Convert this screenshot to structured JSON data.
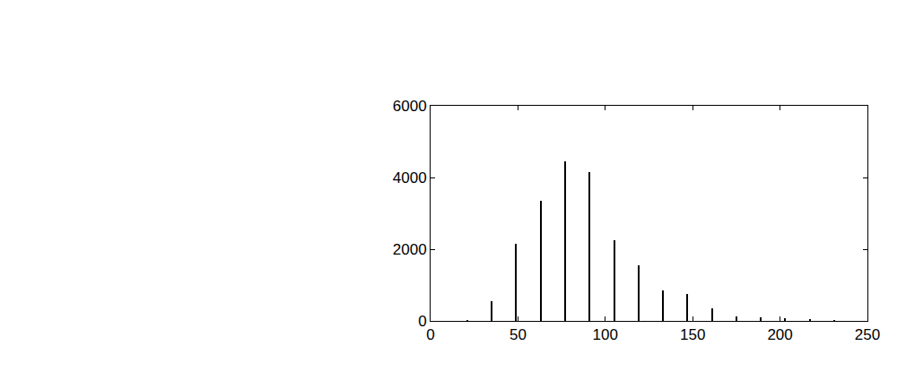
{
  "chart_data": {
    "type": "bar",
    "x": [
      21,
      35,
      49,
      63,
      77,
      91,
      105,
      119,
      133,
      147,
      161,
      175,
      189,
      203,
      217,
      231
    ],
    "values": [
      30,
      550,
      2150,
      3350,
      4450,
      4150,
      2250,
      1550,
      850,
      750,
      350,
      120,
      100,
      80,
      50,
      30
    ],
    "color": "#000000",
    "xlim": [
      0,
      250
    ],
    "xticks": [
      0,
      50,
      100,
      150,
      200,
      250
    ],
    "ylim": [
      0,
      6000
    ],
    "yticks": [
      0,
      2000,
      4000,
      6000
    ],
    "grid": false
  }
}
